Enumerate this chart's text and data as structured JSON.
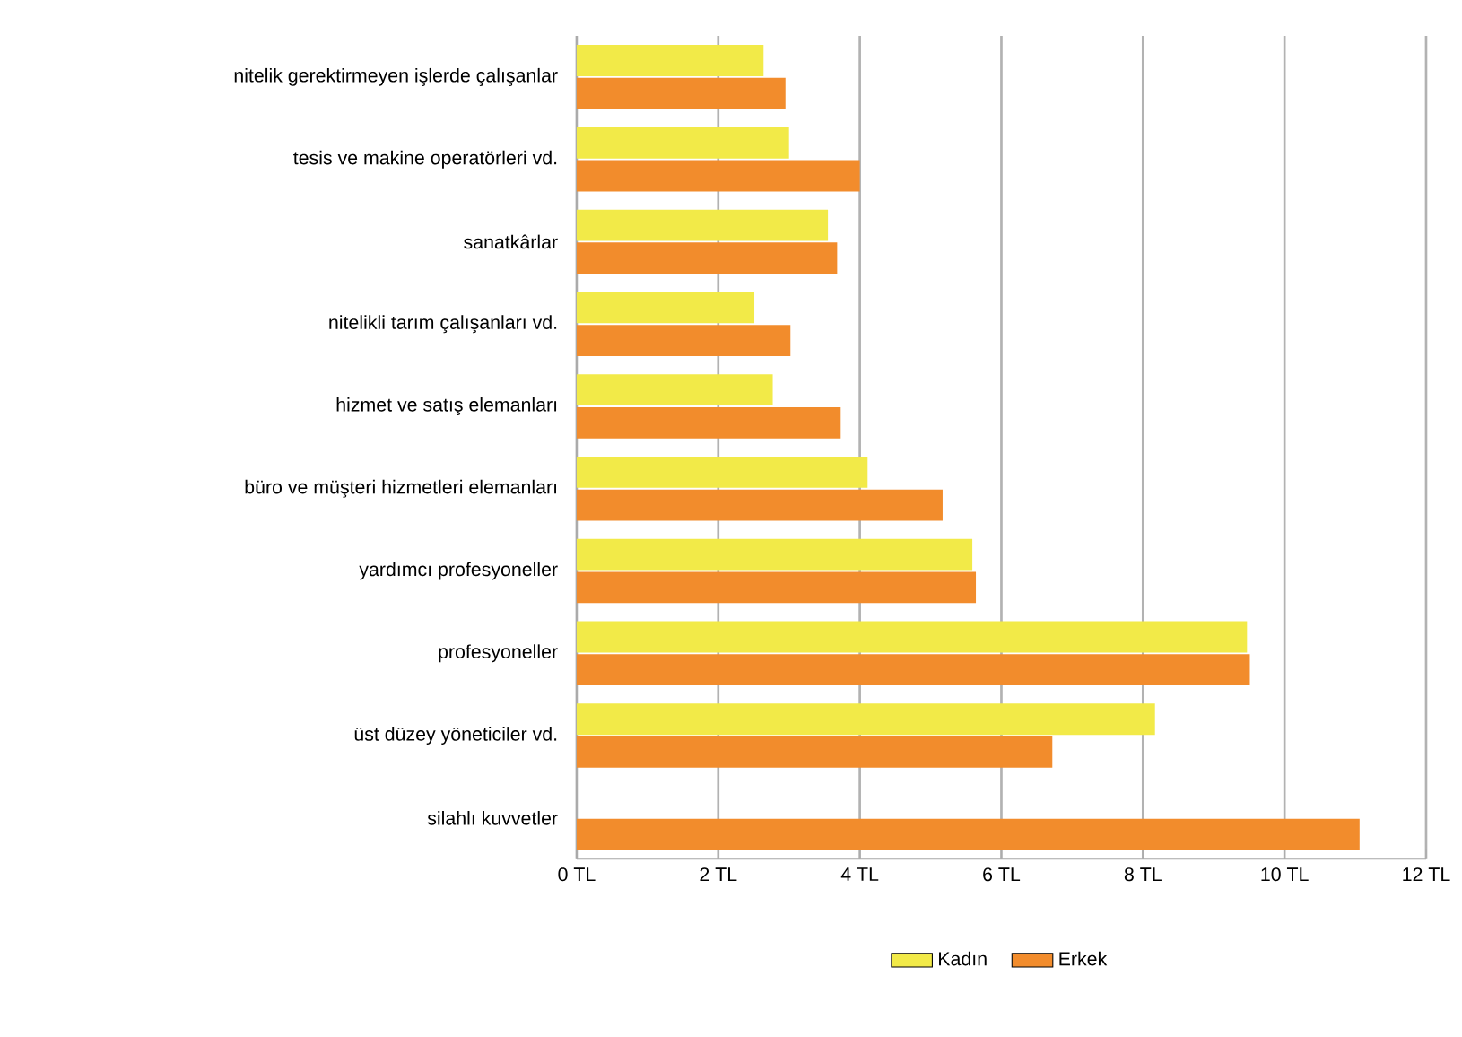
{
  "chart_data": {
    "type": "bar",
    "orientation": "horizontal",
    "categories": [
      "nitelik gerektirmeyen işlerde çalışanlar",
      "tesis ve makine operatörleri vd.",
      "sanatkârlar",
      "nitelikli tarım çalışanları vd.",
      "hizmet ve satış elemanları",
      "büro ve müşteri hizmetleri elemanları",
      "yardımcı profesyoneller",
      "profesyoneller",
      "üst düzey yöneticiler vd.",
      "silahlı kuvvetler"
    ],
    "series": [
      {
        "name": "Kadın",
        "color": "#f2ea48",
        "values": [
          2.64,
          3.0,
          3.55,
          2.51,
          2.77,
          4.11,
          5.59,
          9.47,
          8.17,
          null
        ]
      },
      {
        "name": "Erkek",
        "color": "#f28c2c",
        "values": [
          2.95,
          4.0,
          3.68,
          3.02,
          3.73,
          5.17,
          5.64,
          9.51,
          6.72,
          11.06
        ]
      }
    ],
    "xlim": [
      0,
      12
    ],
    "xticks": [
      {
        "value": 0,
        "label": "0 TL"
      },
      {
        "value": 2,
        "label": "2 TL"
      },
      {
        "value": 4,
        "label": "4 TL"
      },
      {
        "value": 6,
        "label": "6 TL"
      },
      {
        "value": 8,
        "label": "8 TL"
      },
      {
        "value": 10,
        "label": "10 TL"
      },
      {
        "value": 12,
        "label": "12 TL"
      }
    ],
    "grid": "x",
    "legend": "bottom"
  }
}
